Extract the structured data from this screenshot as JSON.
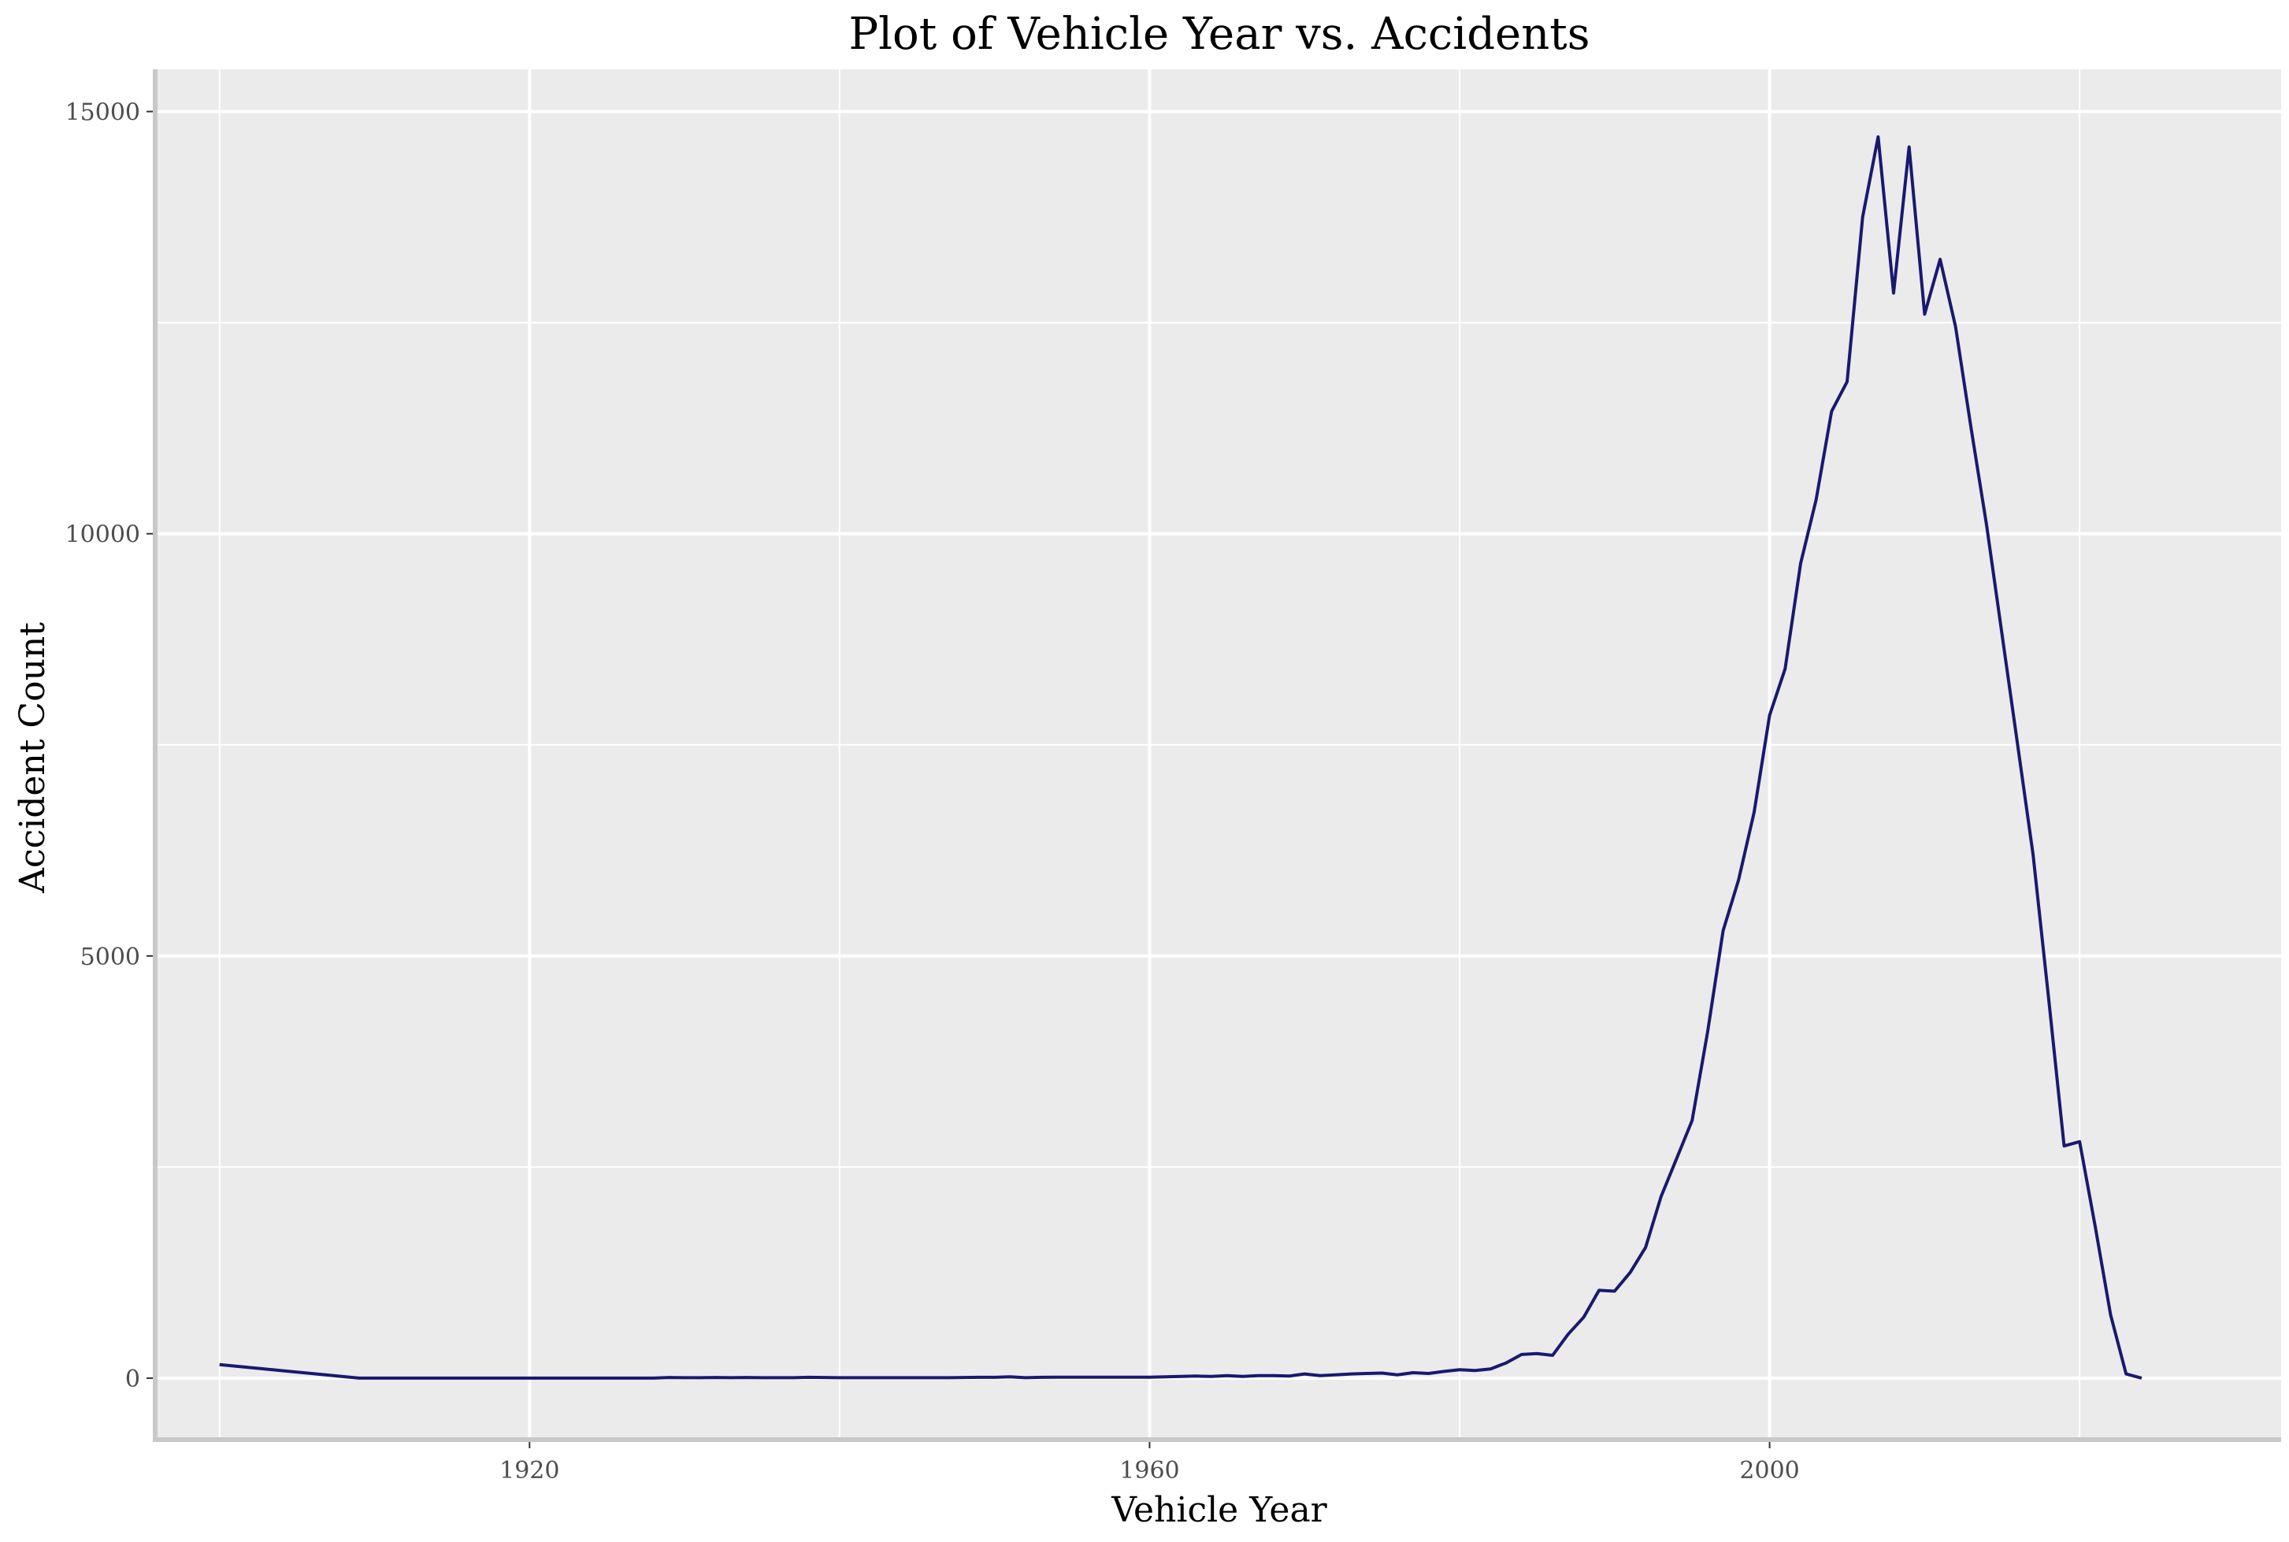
{
  "chart_data": {
    "type": "line",
    "title": "Plot of Vehicle Year vs. Accidents",
    "xlabel": "Vehicle Year",
    "ylabel": "Accident Count",
    "xlim": [
      1896,
      2033
    ],
    "ylim": [
      -700,
      15500
    ],
    "x_ticks": [
      1920,
      1960,
      2000
    ],
    "y_ticks": [
      0,
      5000,
      10000,
      15000
    ],
    "x_minor_ticks": [
      1900,
      1940,
      1980,
      2020
    ],
    "y_minor_ticks": [
      2500,
      7500,
      12500
    ],
    "grid": true,
    "colors": {
      "line": "#191970",
      "panel": "#ebebeb",
      "grid": "#ffffff",
      "axis": "#c8c8c8",
      "tick_text": "#4d4d4d"
    },
    "series": [
      {
        "x": [
          1900,
          1909,
          1910,
          1920,
          1928,
          1929,
          1930,
          1931,
          1932,
          1933,
          1934,
          1935,
          1936,
          1937,
          1938,
          1939,
          1940,
          1941,
          1942,
          1943,
          1944,
          1945,
          1946,
          1947,
          1948,
          1949,
          1950,
          1951,
          1952,
          1953,
          1954,
          1955,
          1956,
          1957,
          1958,
          1959,
          1960,
          1961,
          1962,
          1963,
          1964,
          1965,
          1966,
          1967,
          1968,
          1969,
          1970,
          1971,
          1972,
          1973,
          1974,
          1975,
          1976,
          1977,
          1978,
          1979,
          1980,
          1981,
          1982,
          1983,
          1984,
          1985,
          1986,
          1987,
          1988,
          1989,
          1990,
          1991,
          1992,
          1993,
          1994,
          1995,
          1996,
          1997,
          1998,
          1999,
          2000,
          2001,
          2002,
          2003,
          2004,
          2005,
          2006,
          2007,
          2008,
          2009,
          2010,
          2011,
          2012,
          2013,
          2014,
          2015,
          2016,
          2017,
          2018,
          2019,
          2020,
          2021,
          2022,
          2023,
          2024
        ],
        "y": [
          160,
          0,
          0,
          0,
          0,
          8,
          5,
          5,
          8,
          5,
          8,
          5,
          5,
          5,
          10,
          8,
          5,
          5,
          5,
          5,
          5,
          5,
          5,
          5,
          8,
          10,
          10,
          15,
          5,
          10,
          12,
          12,
          12,
          12,
          12,
          12,
          12,
          15,
          20,
          25,
          20,
          30,
          20,
          30,
          30,
          25,
          50,
          30,
          40,
          50,
          55,
          60,
          40,
          65,
          55,
          80,
          100,
          90,
          110,
          180,
          280,
          290,
          270,
          520,
          720,
          1040,
          1030,
          1250,
          1550,
          2150,
          2600,
          3050,
          4100,
          5300,
          5900,
          6700,
          7850,
          8400,
          9650,
          10400,
          11450,
          11800,
          13750,
          14700,
          12850,
          14580,
          12600,
          13250,
          12450,
          11250,
          10100,
          8800,
          7500,
          6200,
          4500,
          2750,
          2800,
          1800,
          750,
          50,
          0
        ]
      }
    ]
  }
}
